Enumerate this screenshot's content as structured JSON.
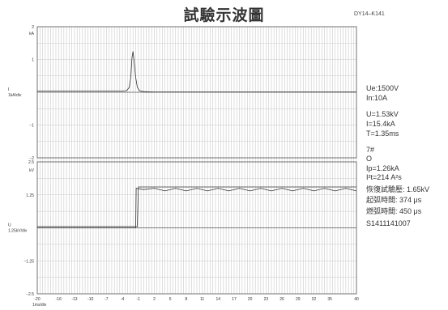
{
  "title": "試驗示波圖",
  "code": "DY14–K141",
  "chart_data": [
    {
      "type": "line",
      "ylabel_unit": "I",
      "ylabel_scale": "1kA/div",
      "ylim": [
        -2,
        2
      ],
      "yticks": [
        {
          "value": 2,
          "label": "2"
        },
        {
          "value": 1.8,
          "label": "kA"
        },
        {
          "value": 1,
          "label": "1"
        },
        {
          "value": -1,
          "label": "−1"
        },
        {
          "value": -2,
          "label": "−2"
        }
      ],
      "series": [
        {
          "points": [
            [
              -20,
              0.04
            ],
            [
              -4,
              0.04
            ],
            [
              -3.2,
              0.05
            ],
            [
              -2.7,
              0.15
            ],
            [
              -2.4,
              0.5
            ],
            [
              -2.2,
              1.05
            ],
            [
              -2.0,
              1.25
            ],
            [
              -1.8,
              0.95
            ],
            [
              -1.5,
              0.45
            ],
            [
              -1.2,
              0.15
            ],
            [
              -0.8,
              0.05
            ],
            [
              0,
              0.02
            ],
            [
              2,
              0.01
            ],
            [
              9,
              0.01
            ],
            [
              40,
              0.01
            ]
          ]
        }
      ]
    },
    {
      "type": "line",
      "ylabel_unit": "U",
      "ylabel_scale": "1.25kV/div",
      "ylim": [
        -2.5,
        2.5
      ],
      "yticks": [
        {
          "value": 2.5,
          "label": "2.5"
        },
        {
          "value": 2.2,
          "label": "kV"
        },
        {
          "value": 1.25,
          "label": "1.25"
        },
        {
          "value": -1.25,
          "label": "−1.25"
        },
        {
          "value": -2.5,
          "label": "−2.5"
        }
      ],
      "series": [
        {
          "points": [
            [
              -20,
              0
            ],
            [
              -1.5,
              0
            ],
            [
              -1.4,
              1.5
            ],
            [
              0,
              1.45
            ],
            [
              2,
              1.5
            ],
            [
              4,
              1.4
            ],
            [
              6,
              1.5
            ],
            [
              8,
              1.4
            ],
            [
              10,
              1.5
            ],
            [
              12,
              1.4
            ],
            [
              14,
              1.5
            ],
            [
              16,
              1.4
            ],
            [
              18,
              1.5
            ],
            [
              20,
              1.4
            ],
            [
              22,
              1.5
            ],
            [
              24,
              1.4
            ],
            [
              26,
              1.5
            ],
            [
              28,
              1.4
            ],
            [
              30,
              1.5
            ],
            [
              32,
              1.4
            ],
            [
              34,
              1.5
            ],
            [
              36,
              1.4
            ],
            [
              38,
              1.5
            ],
            [
              40,
              1.4
            ]
          ]
        },
        {
          "points": [
            [
              -20,
              0.05
            ],
            [
              -1.2,
              0.05
            ],
            [
              -1.0,
              1.55
            ],
            [
              40,
              1.55
            ]
          ]
        }
      ]
    }
  ],
  "x_axis": {
    "label": "1ms/div",
    "ticks": [
      "-20",
      "-16",
      "-13",
      "-10",
      "-7",
      "-4",
      "-1",
      "2",
      "5",
      "8",
      "11",
      "14",
      "17",
      "20",
      "23",
      "26",
      "29",
      "32",
      "35",
      "40"
    ],
    "tick_values": [
      -20,
      -16,
      -13,
      -10,
      -7,
      -4,
      -1,
      2,
      5,
      8,
      11,
      14,
      17,
      20,
      23,
      26,
      29,
      32,
      35,
      40
    ]
  },
  "side_info": [
    "Ue:1500V",
    "In:10A",
    "",
    "U=1.53kV",
    "I=15.4kA",
    "T=1.35ms",
    "",
    "7#",
    "O",
    "Ip=1.26kA",
    "I²t=214 A²s",
    "恢復試驗壓: 1.65kV",
    "起弧時間: 374 μs",
    "燃弧時間: 450 μs",
    "S1411141007"
  ]
}
